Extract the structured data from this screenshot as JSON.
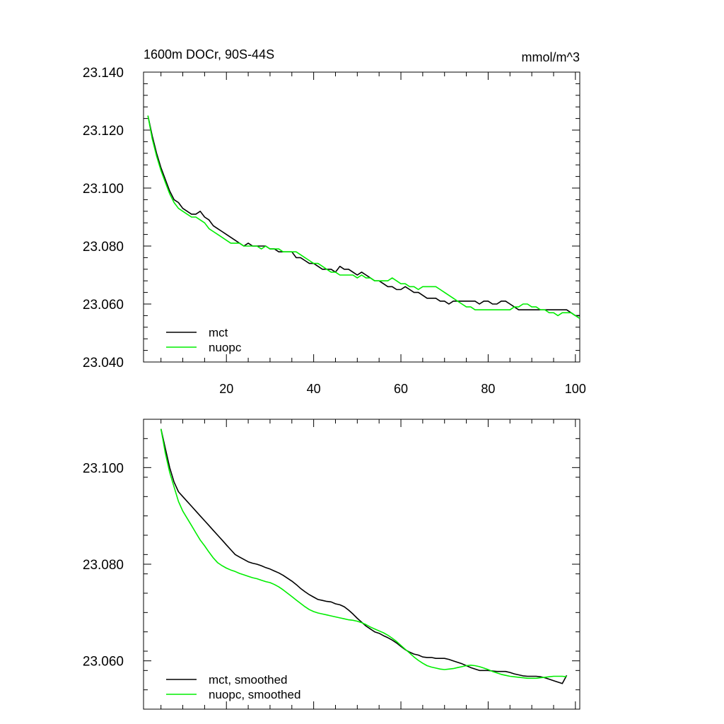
{
  "colors": {
    "mct": "#000000",
    "nuopc": "#00ee00",
    "axis": "#000000",
    "background": "#ffffff"
  },
  "chart_data": [
    {
      "type": "line",
      "title": "1600m DOCr, 90S-44S",
      "units": "mmol/m^3",
      "xlim": [
        1,
        101
      ],
      "ylim": [
        23.04,
        23.14
      ],
      "xticks": [
        20,
        40,
        60,
        80,
        100
      ],
      "xtick_labels": [
        "20",
        "40",
        "60",
        "80",
        "100"
      ],
      "yticks": [
        23.04,
        23.06,
        23.08,
        23.1,
        23.12,
        23.14
      ],
      "ytick_labels": [
        "23.040",
        "23.060",
        "23.080",
        "23.100",
        "23.120",
        "23.140"
      ],
      "legend_position": "bottom-left",
      "series": [
        {
          "name": "mct",
          "color": "#000000",
          "x": [
            2,
            3,
            4,
            5,
            6,
            7,
            8,
            9,
            10,
            11,
            12,
            13,
            14,
            15,
            16,
            17,
            18,
            19,
            20,
            21,
            22,
            23,
            24,
            25,
            26,
            27,
            28,
            29,
            30,
            31,
            32,
            33,
            34,
            35,
            36,
            37,
            38,
            39,
            40,
            41,
            42,
            43,
            44,
            45,
            46,
            47,
            48,
            49,
            50,
            51,
            52,
            53,
            54,
            55,
            56,
            57,
            58,
            59,
            60,
            61,
            62,
            63,
            64,
            65,
            66,
            67,
            68,
            69,
            70,
            71,
            72,
            73,
            74,
            75,
            76,
            77,
            78,
            79,
            80,
            81,
            82,
            83,
            84,
            85,
            86,
            87,
            88,
            89,
            90,
            91,
            92,
            93,
            94,
            95,
            96,
            97,
            98,
            99,
            100,
            101
          ],
          "y": [
            23.125,
            23.118,
            23.112,
            23.107,
            23.103,
            23.099,
            23.096,
            23.095,
            23.093,
            23.092,
            23.091,
            23.091,
            23.092,
            23.09,
            23.089,
            23.087,
            23.086,
            23.085,
            23.084,
            23.083,
            23.082,
            23.081,
            23.08,
            23.081,
            23.08,
            23.08,
            23.08,
            23.08,
            23.079,
            23.079,
            23.078,
            23.078,
            23.078,
            23.078,
            23.076,
            23.076,
            23.075,
            23.074,
            23.074,
            23.073,
            23.072,
            23.072,
            23.072,
            23.071,
            23.073,
            23.072,
            23.072,
            23.071,
            23.07,
            23.071,
            23.07,
            23.069,
            23.068,
            23.068,
            23.067,
            23.066,
            23.066,
            23.065,
            23.065,
            23.066,
            23.065,
            23.064,
            23.064,
            23.063,
            23.062,
            23.062,
            23.062,
            23.061,
            23.061,
            23.06,
            23.061,
            23.061,
            23.061,
            23.061,
            23.061,
            23.061,
            23.06,
            23.061,
            23.061,
            23.06,
            23.06,
            23.061,
            23.061,
            23.06,
            23.059,
            23.058,
            23.058,
            23.058,
            23.058,
            23.058,
            23.058,
            23.058,
            23.058,
            23.058,
            23.058,
            23.058,
            23.058,
            23.057,
            23.056,
            23.056
          ]
        },
        {
          "name": "nuopc",
          "color": "#00ee00",
          "x": [
            2,
            3,
            4,
            5,
            6,
            7,
            8,
            9,
            10,
            11,
            12,
            13,
            14,
            15,
            16,
            17,
            18,
            19,
            20,
            21,
            22,
            23,
            24,
            25,
            26,
            27,
            28,
            29,
            30,
            31,
            32,
            33,
            34,
            35,
            36,
            37,
            38,
            39,
            40,
            41,
            42,
            43,
            44,
            45,
            46,
            47,
            48,
            49,
            50,
            51,
            52,
            53,
            54,
            55,
            56,
            57,
            58,
            59,
            60,
            61,
            62,
            63,
            64,
            65,
            66,
            67,
            68,
            69,
            70,
            71,
            72,
            73,
            74,
            75,
            76,
            77,
            78,
            79,
            80,
            81,
            82,
            83,
            84,
            85,
            86,
            87,
            88,
            89,
            90,
            91,
            92,
            93,
            94,
            95,
            96,
            97,
            98,
            99,
            100,
            101
          ],
          "y": [
            23.125,
            23.117,
            23.111,
            23.106,
            23.102,
            23.098,
            23.095,
            23.093,
            23.092,
            23.091,
            23.09,
            23.09,
            23.089,
            23.088,
            23.086,
            23.085,
            23.084,
            23.083,
            23.082,
            23.081,
            23.081,
            23.081,
            23.08,
            23.08,
            23.08,
            23.08,
            23.079,
            23.08,
            23.079,
            23.079,
            23.079,
            23.078,
            23.078,
            23.078,
            23.078,
            23.077,
            23.076,
            23.075,
            23.074,
            23.074,
            23.073,
            23.072,
            23.071,
            23.071,
            23.07,
            23.07,
            23.07,
            23.07,
            23.069,
            23.07,
            23.069,
            23.069,
            23.068,
            23.068,
            23.068,
            23.068,
            23.069,
            23.068,
            23.067,
            23.067,
            23.066,
            23.066,
            23.065,
            23.066,
            23.066,
            23.066,
            23.066,
            23.065,
            23.064,
            23.063,
            23.062,
            23.061,
            23.06,
            23.059,
            23.059,
            23.058,
            23.058,
            23.058,
            23.058,
            23.058,
            23.058,
            23.058,
            23.058,
            23.058,
            23.059,
            23.059,
            23.06,
            23.06,
            23.059,
            23.059,
            23.058,
            23.058,
            23.057,
            23.057,
            23.056,
            23.057,
            23.057,
            23.057,
            23.056,
            23.055
          ]
        }
      ]
    },
    {
      "type": "line",
      "title": "",
      "units": "",
      "xlim": [
        1,
        101
      ],
      "ylim": [
        23.05,
        23.11
      ],
      "xticks": [
        20,
        40,
        60,
        80,
        100
      ],
      "xtick_labels": [],
      "yticks": [
        23.06,
        23.08,
        23.1
      ],
      "ytick_labels": [
        "23.060",
        "23.080",
        "23.100"
      ],
      "legend_position": "bottom-left",
      "series": [
        {
          "name": "mct, smoothed",
          "color": "#000000",
          "x": [
            5,
            6,
            7,
            8,
            9,
            10,
            11,
            12,
            13,
            14,
            15,
            16,
            17,
            18,
            19,
            20,
            21,
            22,
            23,
            24,
            25,
            26,
            27,
            28,
            29,
            30,
            31,
            32,
            33,
            34,
            35,
            36,
            37,
            38,
            39,
            40,
            41,
            42,
            43,
            44,
            45,
            46,
            47,
            48,
            49,
            50,
            51,
            52,
            53,
            54,
            55,
            56,
            57,
            58,
            59,
            60,
            61,
            62,
            63,
            64,
            65,
            66,
            67,
            68,
            69,
            70,
            71,
            72,
            73,
            74,
            75,
            76,
            77,
            78,
            79,
            80,
            81,
            82,
            83,
            84,
            85,
            86,
            87,
            88,
            89,
            90,
            91,
            92,
            93,
            94,
            95,
            96,
            97,
            98
          ],
          "y": [
            23.108,
            23.104,
            23.1,
            23.097,
            23.095,
            23.094,
            23.093,
            23.092,
            23.091,
            23.09,
            23.089,
            23.088,
            23.087,
            23.086,
            23.085,
            23.084,
            23.083,
            23.082,
            23.0815,
            23.081,
            23.0805,
            23.0802,
            23.08,
            23.0797,
            23.0793,
            23.079,
            23.0786,
            23.0782,
            23.0777,
            23.0771,
            23.0765,
            23.0758,
            23.075,
            23.0743,
            23.0737,
            23.0732,
            23.0727,
            23.0725,
            23.0723,
            23.0722,
            23.0718,
            23.0716,
            23.0712,
            23.0705,
            23.0697,
            23.0688,
            23.068,
            23.0672,
            23.0666,
            23.066,
            23.0657,
            23.0652,
            23.0648,
            23.0643,
            23.0637,
            23.063,
            23.0623,
            23.0618,
            23.0614,
            23.0612,
            23.0608,
            23.0607,
            23.0607,
            23.0605,
            23.0605,
            23.0605,
            23.0603,
            23.06,
            23.0597,
            23.0594,
            23.059,
            23.0586,
            23.0583,
            23.058,
            23.058,
            23.058,
            23.0579,
            23.0578,
            23.0578,
            23.0578,
            23.0576,
            23.0573,
            23.0571,
            23.0569,
            23.0568,
            23.0568,
            23.0568,
            23.0567,
            23.0565,
            23.0562,
            23.0559,
            23.0556,
            23.0553,
            23.057
          ]
        },
        {
          "name": "nuopc, smoothed",
          "color": "#00ee00",
          "x": [
            5,
            6,
            7,
            8,
            9,
            10,
            11,
            12,
            13,
            14,
            15,
            16,
            17,
            18,
            19,
            20,
            21,
            22,
            23,
            24,
            25,
            26,
            27,
            28,
            29,
            30,
            31,
            32,
            33,
            34,
            35,
            36,
            37,
            38,
            39,
            40,
            41,
            42,
            43,
            44,
            45,
            46,
            47,
            48,
            49,
            50,
            51,
            52,
            53,
            54,
            55,
            56,
            57,
            58,
            59,
            60,
            61,
            62,
            63,
            64,
            65,
            66,
            67,
            68,
            69,
            70,
            71,
            72,
            73,
            74,
            75,
            76,
            77,
            78,
            79,
            80,
            81,
            82,
            83,
            84,
            85,
            86,
            87,
            88,
            89,
            90,
            91,
            92,
            93,
            94,
            95,
            96,
            97,
            98
          ],
          "y": [
            23.108,
            23.103,
            23.099,
            23.096,
            23.093,
            23.091,
            23.0895,
            23.088,
            23.0865,
            23.085,
            23.0838,
            23.0825,
            23.0813,
            23.0803,
            23.0797,
            23.0792,
            23.0788,
            23.0785,
            23.0781,
            23.0778,
            23.0775,
            23.0772,
            23.077,
            23.0767,
            23.0764,
            23.0762,
            23.0758,
            23.0753,
            23.0747,
            23.074,
            23.0733,
            23.0726,
            23.0719,
            23.0712,
            23.0706,
            23.0702,
            23.0699,
            23.0697,
            23.0695,
            23.0693,
            23.0691,
            23.0689,
            23.0687,
            23.0685,
            23.0684,
            23.0682,
            23.0679,
            23.0675,
            23.067,
            23.0666,
            23.0662,
            23.0658,
            23.0653,
            23.0647,
            23.064,
            23.0632,
            23.0624,
            23.0616,
            23.0608,
            23.0601,
            23.0595,
            23.059,
            23.0587,
            23.0585,
            23.0583,
            23.0582,
            23.0583,
            23.0584,
            23.0586,
            23.0588,
            23.059,
            23.0591,
            23.059,
            23.0588,
            23.0585,
            23.0582,
            23.0578,
            23.0575,
            23.0572,
            23.057,
            23.0568,
            23.0567,
            23.0566,
            23.0565,
            23.0564,
            23.0564,
            23.0564,
            23.0565,
            23.0566,
            23.0567,
            23.0568,
            23.0568,
            23.0568,
            23.0567
          ]
        }
      ]
    }
  ]
}
